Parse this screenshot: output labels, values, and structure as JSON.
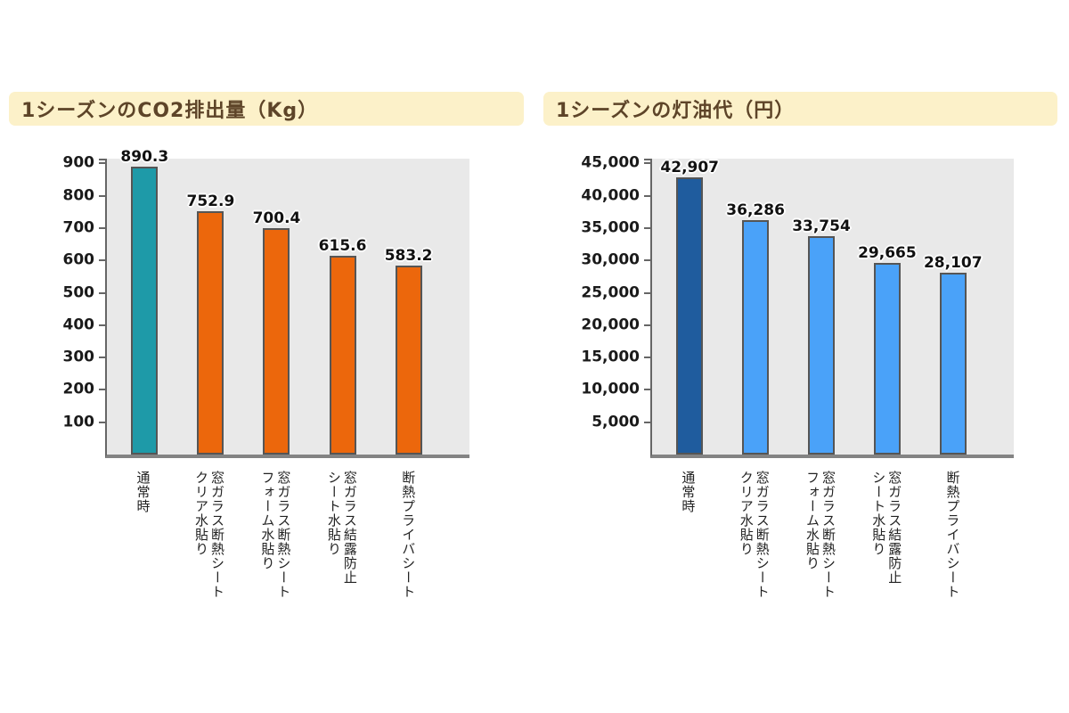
{
  "page": {
    "background": "#ffffff"
  },
  "styles": {
    "title_bg": "#FCF1C9",
    "title_color": "#5D4428",
    "plot_bg": "#E9E9E9",
    "axis_color": "#666666",
    "baseline_color": "#838383",
    "bar_border": "#555555"
  },
  "chart_data": [
    {
      "type": "bar",
      "title": "1シーズンのCO2排出量（Kg）",
      "unit": "Kg",
      "categories": [
        "通常時",
        "窓ガラス断熱シート\nクリア水貼り",
        "窓ガラス断熱シート\nフォーム水貼り",
        "窓ガラス結露防止\nシート水貼り",
        "断熱プライバシート"
      ],
      "values": [
        890.3,
        752.9,
        700.4,
        615.6,
        583.2
      ],
      "value_labels": [
        "890.3",
        "752.9",
        "700.4",
        "615.6",
        "583.2"
      ],
      "bar_colors": [
        "#1E9AA8",
        "#EC670C",
        "#EC670C",
        "#EC670C",
        "#EC670C"
      ],
      "yticks": [
        100,
        200,
        300,
        400,
        500,
        600,
        700,
        800,
        900
      ],
      "ytick_labels": [
        "100",
        "200",
        "300",
        "400",
        "500",
        "600",
        "700",
        "800",
        "900"
      ],
      "ylim": [
        0,
        915
      ],
      "xlabel": "",
      "ylabel": "",
      "grid": false,
      "legend": "none"
    },
    {
      "type": "bar",
      "title": "1シーズンの灯油代（円）",
      "unit": "円",
      "categories": [
        "通常時",
        "窓ガラス断熱シート\nクリア水貼り",
        "窓ガラス断熱シート\nフォーム水貼り",
        "窓ガラス結露防止\nシート水貼り",
        "断熱プライバシート"
      ],
      "values": [
        42907,
        36286,
        33754,
        29665,
        28107
      ],
      "value_labels": [
        "42,907",
        "36,286",
        "33,754",
        "29,665",
        "28,107"
      ],
      "bar_colors": [
        "#1F5C9E",
        "#4AA2F9",
        "#4AA2F9",
        "#4AA2F9",
        "#4AA2F9"
      ],
      "yticks": [
        5000,
        10000,
        15000,
        20000,
        25000,
        30000,
        35000,
        40000,
        45000
      ],
      "ytick_labels": [
        "5,000",
        "10,000",
        "15,000",
        "20,000",
        "25,000",
        "30,000",
        "35,000",
        "40,000",
        "45,000"
      ],
      "ylim": [
        0,
        45750
      ],
      "xlabel": "",
      "ylabel": "",
      "grid": false,
      "legend": "none"
    }
  ]
}
